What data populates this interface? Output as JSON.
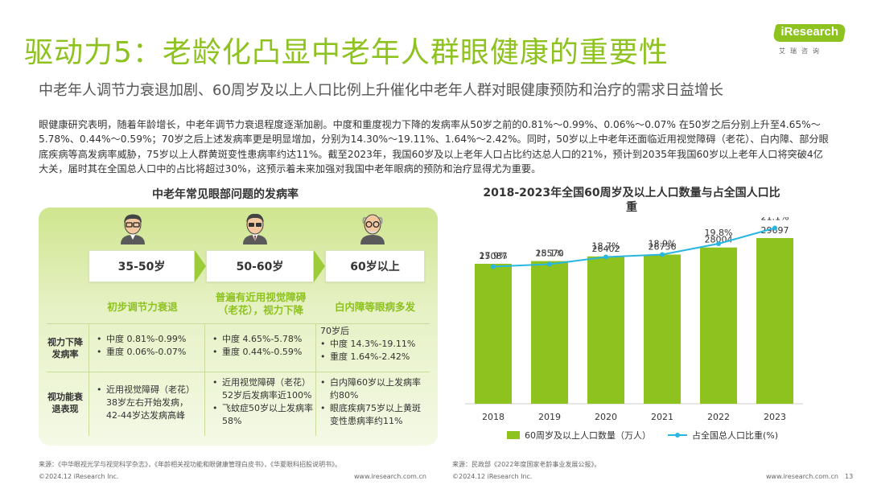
{
  "header": {
    "title": "驱动力5：老龄化凸显中老年人群眼健康的重要性",
    "subtitle": "中老年人调节力衰退加剧、60周岁及以上人口比例上升催化中老年人群对眼健康预防和治疗的需求日益增长",
    "logo_text": "iResearch",
    "logo_sub": "艾瑞咨询"
  },
  "intro": "眼健康研究表明，随着年龄增长，中老年调节力衰退程度逐渐加剧。中度和重度视力下降的发病率从50岁之前的0.81%～0.99%、0.06%～0.07% 在50岁之后分别上升至4.65%～5.78%、0.44%～0.59%；70岁之后上述发病率更是明显增加，分别为14.30%～19.11%、1.64%～2.42%。同时，50岁以上中老年还面临近用视觉障碍（老花）、白内障、部分眼底疾病等高发病率威胁，75岁以上人群黄斑变性患病率约达11%。截至2023年，我国60岁及以上老年人口占比约达总人口的21%，预计到2035年我国60岁以上老年人口将突破4亿大关，届时其在全国总人口中的占比将超过30%，这预示着未来加强对我国中老年眼病的预防和治疗显得尤为重要。",
  "left": {
    "title": "中老年常见眼部问题的发病率",
    "row_labels": [
      "视力下降发病率",
      "视功能衰退表现"
    ],
    "groups": [
      {
        "age": "35-50岁",
        "stage": "初步调节力衰退",
        "rate_items": [
          "中度 0.81%-0.99%",
          "重度 0.06%-0.07%"
        ],
        "rate_note": "",
        "func_items": [
          "近用视觉障碍（老花）38岁左右开始发病，42-44岁达发病高峰"
        ]
      },
      {
        "age": "50-60岁",
        "stage": "普遍有近用视觉障碍（老花），视力下降",
        "rate_items": [
          "中度 4.65%-5.78%",
          "重度 0.44%-0.59%"
        ],
        "rate_note": "",
        "func_items": [
          "近用视觉障碍（老花）52岁后发病率近100%",
          "飞蚊症50岁以上发病率58%"
        ]
      },
      {
        "age": "60岁以上",
        "stage": "白内障等眼病多发",
        "rate_items": [
          "中度 14.3%-19.11%",
          "重度 1.64%-2.42%"
        ],
        "rate_note": "70岁后",
        "func_items": [
          "白内障60岁以上发病率约80%",
          "眼底疾病75岁以上黄斑变性患病率约11%"
        ]
      }
    ]
  },
  "chart_data": {
    "type": "bar",
    "title": "2018-2023年全国60周岁及以上人口数量与占全国人口比重",
    "categories": [
      "2018",
      "2019",
      "2020",
      "2021",
      "2022",
      "2023"
    ],
    "series": [
      {
        "name": "60周岁及以上人口数量（万人）",
        "type": "bar",
        "values": [
          25087,
          25570,
          26402,
          26736,
          28004,
          29697
        ]
      },
      {
        "name": "占全国总人口比重(%)",
        "type": "line",
        "values": [
          17.9,
          18.1,
          18.7,
          18.9,
          19.8,
          21.1
        ],
        "value_labels": [
          "17.9%",
          "18.1%",
          "18.7%",
          "18.9%",
          "19.8%",
          "21.1%"
        ]
      }
    ],
    "ylim": [
      0,
      32000
    ],
    "y2lim": [
      12,
      22
    ],
    "grid": false,
    "legend": "bottom",
    "colors": {
      "bar": "#8dc21f",
      "line": "#29b6e0"
    }
  },
  "footer": {
    "source_left": "来源：《中华眼视光学与视觉科学杂志》，《年龄相关视功能和眼健康管理白皮书》，《华夏眼科招股说明书》。",
    "source_right": "来源：民政部《2022年度国家老龄事业发展公报》。",
    "copyright_left": "©2024.12 iResearch Inc.",
    "url_left": "www.iresearch.com.cn",
    "copyright_right": "©2024.12 iResearch Inc.",
    "url_right": "www.iresearch.com.cn",
    "page": "13"
  }
}
